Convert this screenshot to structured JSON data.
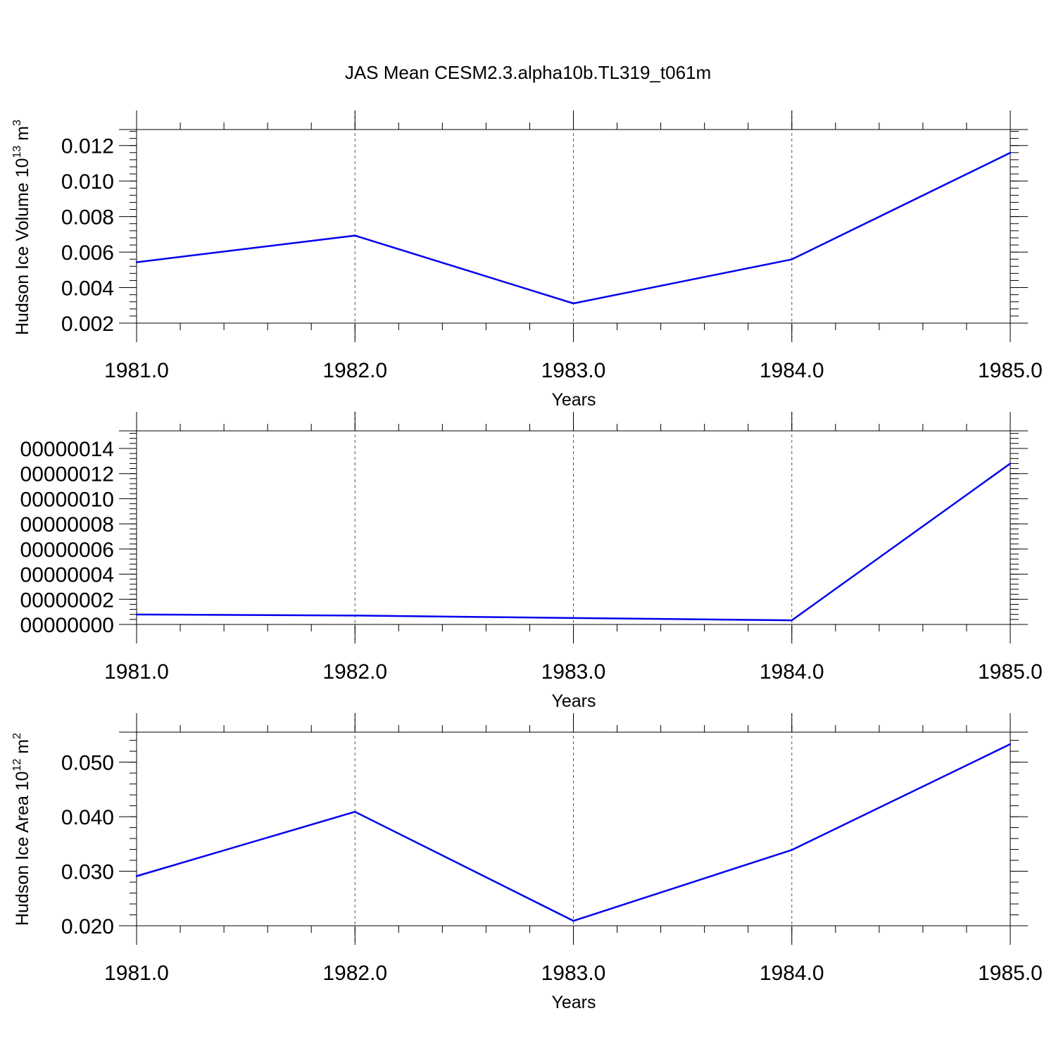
{
  "title": "JAS Mean CESM2.3.alpha10b.TL319_t061m",
  "line_color": "#0000ee",
  "chart_data": [
    {
      "type": "line",
      "title": "JAS Mean CESM2.3.alpha10b.TL319_t061m",
      "xlabel": "Years",
      "ylabel": "Hudson Ice Volume 10",
      "ylabel_sup": "13",
      "ylabel_unit": " m",
      "ylabel_unit_sup": "3",
      "x": [
        1981,
        1982,
        1983,
        1984,
        1985
      ],
      "xlim": [
        1981,
        1985.08
      ],
      "xticks": [
        1981,
        1982,
        1983,
        1984,
        1985
      ],
      "xtick_labels": [
        "1981.0",
        "1982.0",
        "1983.0",
        "1984.0",
        "1985.0"
      ],
      "ylim": [
        0.002,
        0.0129
      ],
      "yticks": [
        0.002,
        0.004,
        0.006,
        0.008,
        0.01,
        0.012
      ],
      "ytick_labels": [
        "0.002",
        "0.004",
        "0.006",
        "0.008",
        "0.010",
        "0.012"
      ],
      "grid": "vertical-dashed",
      "series": [
        {
          "values": [
            0.00543,
            0.00693,
            0.00311,
            0.00559,
            0.01159
          ]
        }
      ]
    },
    {
      "type": "line",
      "xlabel": "Years",
      "ylabel": "",
      "x": [
        1981,
        1982,
        1983,
        1984,
        1985
      ],
      "xlim": [
        1981,
        1985.08
      ],
      "xticks": [
        1981,
        1982,
        1983,
        1984,
        1985
      ],
      "xtick_labels": [
        "1981.0",
        "1982.0",
        "1983.0",
        "1984.0",
        "1985.0"
      ],
      "ylim": [
        0.0,
        1.54e-08
      ],
      "yticks": [
        0.0,
        2e-09,
        4e-09,
        6e-09,
        8e-09,
        1e-08,
        1.2e-08,
        1.4e-08
      ],
      "ytick_labels": [
        "00000000",
        "00000002",
        "00000004",
        "00000006",
        "00000008",
        "00000010",
        "00000012",
        "00000014"
      ],
      "grid": "vertical-dashed",
      "series": [
        {
          "values": [
            7.9e-10,
            7.1e-10,
            5.1e-10,
            3.3e-10,
            1.28e-08
          ]
        }
      ]
    },
    {
      "type": "line",
      "xlabel": "Years",
      "ylabel": "Hudson Ice Area 10",
      "ylabel_sup": "12",
      "ylabel_unit": " m",
      "ylabel_unit_sup": "2",
      "x": [
        1981,
        1982,
        1983,
        1984,
        1985
      ],
      "xlim": [
        1981,
        1985.08
      ],
      "xticks": [
        1981,
        1982,
        1983,
        1984,
        1985
      ],
      "xtick_labels": [
        "1981.0",
        "1982.0",
        "1983.0",
        "1984.0",
        "1985.0"
      ],
      "ylim": [
        0.02,
        0.0555
      ],
      "yticks": [
        0.02,
        0.03,
        0.04,
        0.05
      ],
      "ytick_labels": [
        "0.020",
        "0.030",
        "0.040",
        "0.050"
      ],
      "grid": "vertical-dashed",
      "series": [
        {
          "values": [
            0.0291,
            0.0409,
            0.0209,
            0.0339,
            0.0533
          ]
        }
      ]
    }
  ]
}
